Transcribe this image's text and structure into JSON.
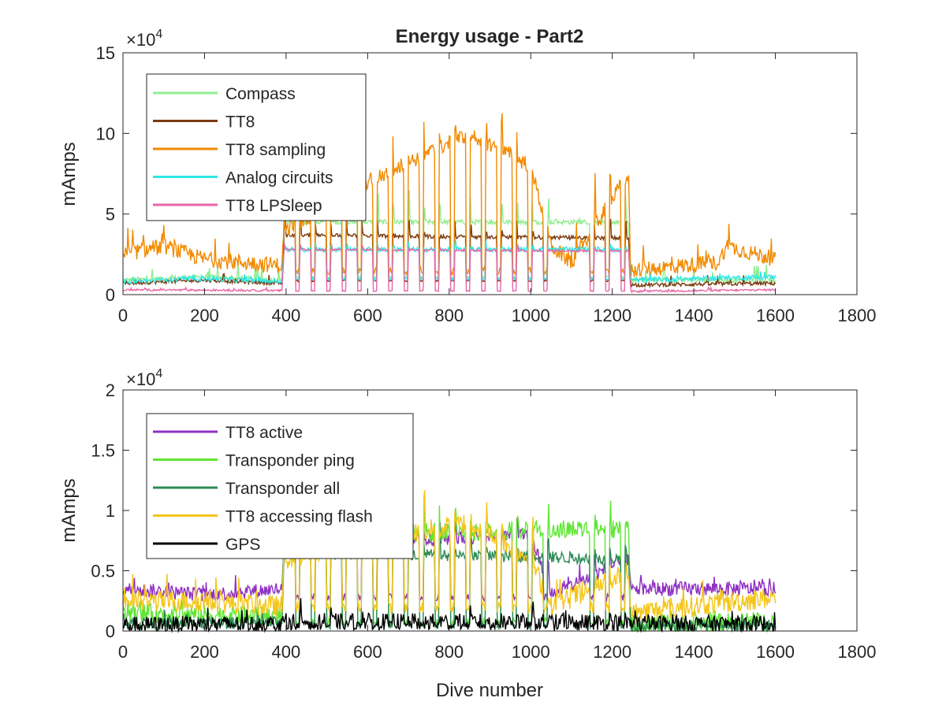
{
  "chart_data": [
    {
      "type": "line",
      "title": "Energy usage - Part2",
      "xlabel": "",
      "ylabel": "mAmps",
      "xlim": [
        0,
        1800
      ],
      "ylim": [
        0,
        150000
      ],
      "x_ticks": [
        "0",
        "200",
        "400",
        "600",
        "800",
        "1000",
        "1200",
        "1400",
        "1600",
        "1800"
      ],
      "y_ticks": [
        "0",
        "5",
        "10",
        "15"
      ],
      "y_exponent": {
        "base": "×10",
        "power": "4"
      },
      "grid": false,
      "legend_position": "top-left",
      "series": [
        {
          "name": "Compass",
          "color": "#90ee90",
          "base": [
            [
              0,
              9000
            ],
            [
              200,
              11000
            ],
            [
              390,
              9000
            ],
            [
              395,
              45000
            ],
            [
              1240,
              45000
            ],
            [
              1245,
              9000
            ],
            [
              1600,
              9000
            ]
          ],
          "cycle_low": 10000,
          "spike": 20000,
          "jitter": 1500
        },
        {
          "name": "TT8",
          "color": "#7a3b0f",
          "base": [
            [
              0,
              7000
            ],
            [
              200,
              9000
            ],
            [
              390,
              7000
            ],
            [
              395,
              37000
            ],
            [
              1240,
              35000
            ],
            [
              1245,
              6000
            ],
            [
              1600,
              7000
            ]
          ],
          "cycle_low": 8000,
          "spike": 12000,
          "jitter": 1200
        },
        {
          "name": "TT8 sampling",
          "color": "#f28a00",
          "base": [
            [
              0,
              25000
            ],
            [
              100,
              30000
            ],
            [
              200,
              22000
            ],
            [
              390,
              18000
            ],
            [
              395,
              40000
            ],
            [
              600,
              70000
            ],
            [
              850,
              100000
            ],
            [
              1000,
              80000
            ],
            [
              1050,
              30000
            ],
            [
              1100,
              20000
            ],
            [
              1240,
              75000
            ],
            [
              1245,
              15000
            ],
            [
              1460,
              20000
            ],
            [
              1480,
              30000
            ],
            [
              1600,
              22000
            ]
          ],
          "cycle_low": 12000,
          "spike": 30000,
          "jitter": 5000
        },
        {
          "name": "Analog circuits",
          "color": "#2ee6e6",
          "base": [
            [
              0,
              8000
            ],
            [
              200,
              10000
            ],
            [
              390,
              8000
            ],
            [
              395,
              28000
            ],
            [
              1240,
              28000
            ],
            [
              1245,
              9000
            ],
            [
              1600,
              11000
            ]
          ],
          "cycle_low": 9000,
          "spike": 5000,
          "jitter": 1500
        },
        {
          "name": "TT8 LPSleep",
          "color": "#e866a8",
          "base": [
            [
              0,
              3000
            ],
            [
              390,
              2500
            ],
            [
              395,
              28000
            ],
            [
              1240,
              27000
            ],
            [
              1245,
              2000
            ],
            [
              1600,
              3000
            ]
          ],
          "cycle_low": 2000,
          "spike": 3000,
          "jitter": 600
        }
      ]
    },
    {
      "type": "line",
      "title": "",
      "xlabel": "Dive number",
      "ylabel": "mAmps",
      "xlim": [
        0,
        1800
      ],
      "ylim": [
        0,
        20000
      ],
      "x_ticks": [
        "0",
        "200",
        "400",
        "600",
        "800",
        "1000",
        "1200",
        "1400",
        "1600",
        "1800"
      ],
      "y_ticks": [
        "0",
        "0.5",
        "1",
        "1.5",
        "2"
      ],
      "y_exponent": {
        "base": "×10",
        "power": "4"
      },
      "grid": false,
      "legend_position": "top-left",
      "series": [
        {
          "name": "TT8 active",
          "color": "#8e2fc2",
          "base": [
            [
              0,
              3500
            ],
            [
              200,
              3000
            ],
            [
              390,
              3500
            ],
            [
              395,
              7000
            ],
            [
              1000,
              8000
            ],
            [
              1050,
              3000
            ],
            [
              1240,
              6000
            ],
            [
              1245,
              3500
            ],
            [
              1600,
              3500
            ]
          ],
          "cycle_low": 2500,
          "spike": 2500,
          "jitter": 600
        },
        {
          "name": "Transponder ping",
          "color": "#5ee632",
          "base": [
            [
              0,
              1500
            ],
            [
              390,
              1200
            ],
            [
              395,
              8000
            ],
            [
              1240,
              8500
            ],
            [
              1245,
              500
            ],
            [
              1600,
              800
            ]
          ],
          "cycle_low": 300,
          "spike": 2000,
          "jitter": 800
        },
        {
          "name": "Transponder all",
          "color": "#2e8b57",
          "base": [
            [
              0,
              600
            ],
            [
              390,
              700
            ],
            [
              395,
              6500
            ],
            [
              1240,
              6000
            ],
            [
              1245,
              400
            ],
            [
              1600,
              500
            ]
          ],
          "cycle_low": 200,
          "spike": 1500,
          "jitter": 500
        },
        {
          "name": "TT8 accessing flash",
          "color": "#f5c518",
          "base": [
            [
              0,
              2500
            ],
            [
              200,
              2500
            ],
            [
              390,
              2000
            ],
            [
              395,
              6000
            ],
            [
              850,
              9000
            ],
            [
              1000,
              6000
            ],
            [
              1050,
              2000
            ],
            [
              1240,
              5000
            ],
            [
              1245,
              1500
            ],
            [
              1600,
              2800
            ]
          ],
          "cycle_low": 1500,
          "spike": 4000,
          "jitter": 900
        },
        {
          "name": "GPS",
          "color": "#000000",
          "base": [
            [
              0,
              500
            ],
            [
              390,
              600
            ],
            [
              395,
              800
            ],
            [
              1240,
              700
            ],
            [
              1245,
              600
            ],
            [
              1600,
              600
            ]
          ],
          "cycle_low": 100,
          "spike": 1500,
          "jitter": 700
        }
      ]
    }
  ]
}
